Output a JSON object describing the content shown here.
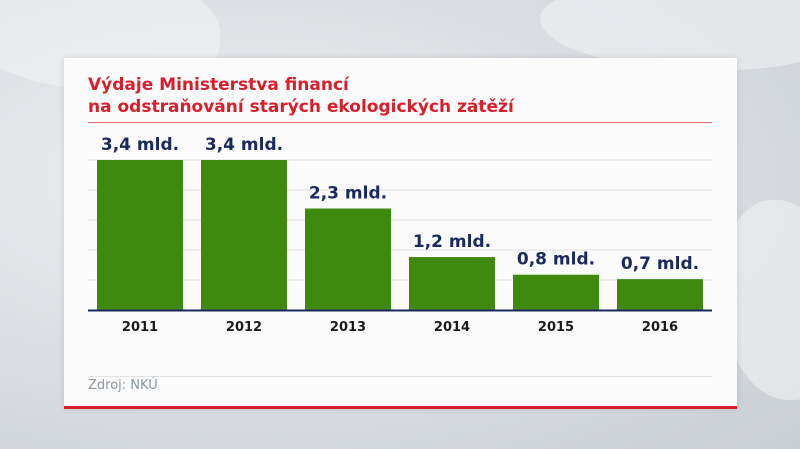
{
  "title_line1": "Výdaje Ministerstva financí",
  "title_line2": "na odstraňování starých ekologických zátěží",
  "source": "Zdroj: NKÚ",
  "colors": {
    "title": "#d81e2a",
    "bar": "#3f8a0e",
    "label": "#1b2a5c",
    "rule": "#d81e2a"
  },
  "chart_data": {
    "type": "bar",
    "categories": [
      "2011",
      "2012",
      "2013",
      "2014",
      "2015",
      "2016"
    ],
    "values": [
      3.4,
      3.4,
      2.3,
      1.2,
      0.8,
      0.7
    ],
    "value_labels": [
      "3,4 mld.",
      "3,4 mld.",
      "2,3 mld.",
      "1,2 mld.",
      "0,8 mld.",
      "0,7 mld."
    ],
    "ylim": [
      0,
      3.4
    ],
    "grid": true,
    "legend": "none"
  }
}
